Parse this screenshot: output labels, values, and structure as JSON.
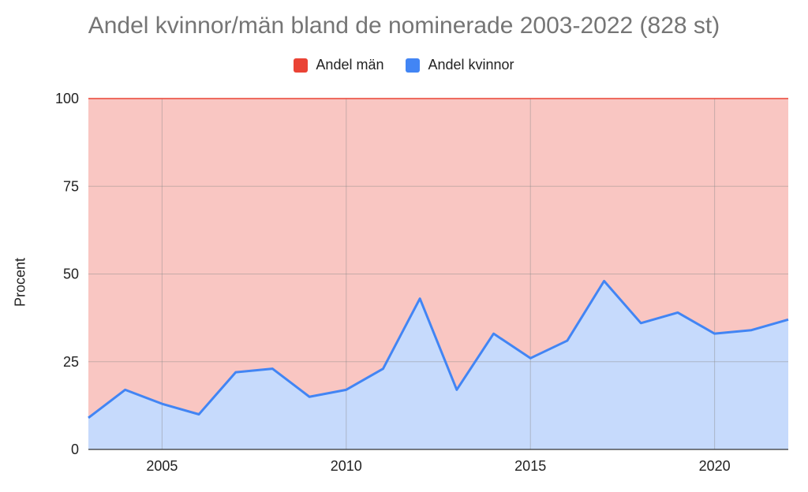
{
  "chart_data": {
    "type": "area",
    "title": "Andel kvinnor/män bland de nominerade 2003-2022 (828 st)",
    "xlabel": "",
    "ylabel": "Procent",
    "x": [
      2003,
      2004,
      2005,
      2006,
      2007,
      2008,
      2009,
      2010,
      2011,
      2012,
      2013,
      2014,
      2015,
      2016,
      2017,
      2018,
      2019,
      2020,
      2021,
      2022
    ],
    "series": [
      {
        "name": "Andel män",
        "color": "#ea4335",
        "values": [
          91,
          83,
          87,
          90,
          78,
          77,
          85,
          83,
          77,
          57,
          83,
          67,
          74,
          69,
          52,
          64,
          61,
          67,
          66,
          63
        ]
      },
      {
        "name": "Andel kvinnor",
        "color": "#4285f4",
        "values": [
          9,
          17,
          13,
          10,
          22,
          23,
          15,
          17,
          23,
          43,
          17,
          33,
          26,
          31,
          48,
          36,
          39,
          33,
          34,
          37
        ]
      }
    ],
    "stacked_total": 100,
    "ylim": [
      0,
      100
    ],
    "xlim": [
      2003,
      2022
    ],
    "yticks": [
      0,
      25,
      50,
      75,
      100
    ],
    "xticks": [
      2005,
      2010,
      2015,
      2020
    ],
    "legend_position": "top",
    "grid": true
  }
}
